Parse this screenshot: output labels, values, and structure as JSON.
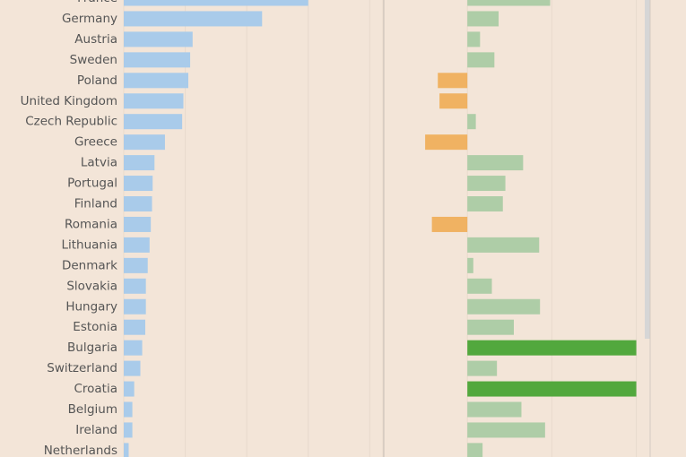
{
  "chart_data": {
    "type": "bar",
    "categories": [
      "France",
      "Germany",
      "Austria",
      "Sweden",
      "Poland",
      "United Kingdom",
      "Czech Republic",
      "Greece",
      "Latvia",
      "Portugal",
      "Finland",
      "Romania",
      "Lithuania",
      "Denmark",
      "Slovakia",
      "Hungary",
      "Estonia",
      "Bulgaria",
      "Switzerland",
      "Croatia",
      "Belgium",
      "Ireland",
      "Netherlands"
    ],
    "panels": [
      {
        "series": [
          {
            "values": [
              3.0,
              2.25,
              1.12,
              1.08,
              1.05,
              0.97,
              0.95,
              0.67,
              0.5,
              0.47,
              0.46,
              0.44,
              0.42,
              0.39,
              0.36,
              0.36,
              0.35,
              0.3,
              0.27,
              0.17,
              0.14,
              0.14,
              0.08
            ]
          }
        ],
        "xlim": [
          0,
          4.2
        ],
        "gridlines": [
          0,
          1,
          2,
          3,
          4
        ],
        "color": "#a9cbea"
      },
      {
        "series": [
          {
            "values": [
              0.98,
              0.37,
              0.15,
              0.32,
              -0.35,
              -0.33,
              0.1,
              -0.5,
              0.66,
              0.45,
              0.42,
              -0.42,
              0.85,
              0.07,
              0.29,
              0.86,
              0.55,
              2.0,
              0.35,
              2.0,
              0.64,
              0.92,
              0.18
            ]
          }
        ],
        "xlim": [
          -1,
          2.1
        ],
        "gridlines": [
          -1,
          0,
          1,
          2
        ],
        "colors": {
          "positive": "#aecda7",
          "negative": "#f0b262",
          "highlight": "#52a83d"
        },
        "highlight": [
          "Bulgaria",
          "Croatia"
        ]
      }
    ],
    "grid": true
  }
}
